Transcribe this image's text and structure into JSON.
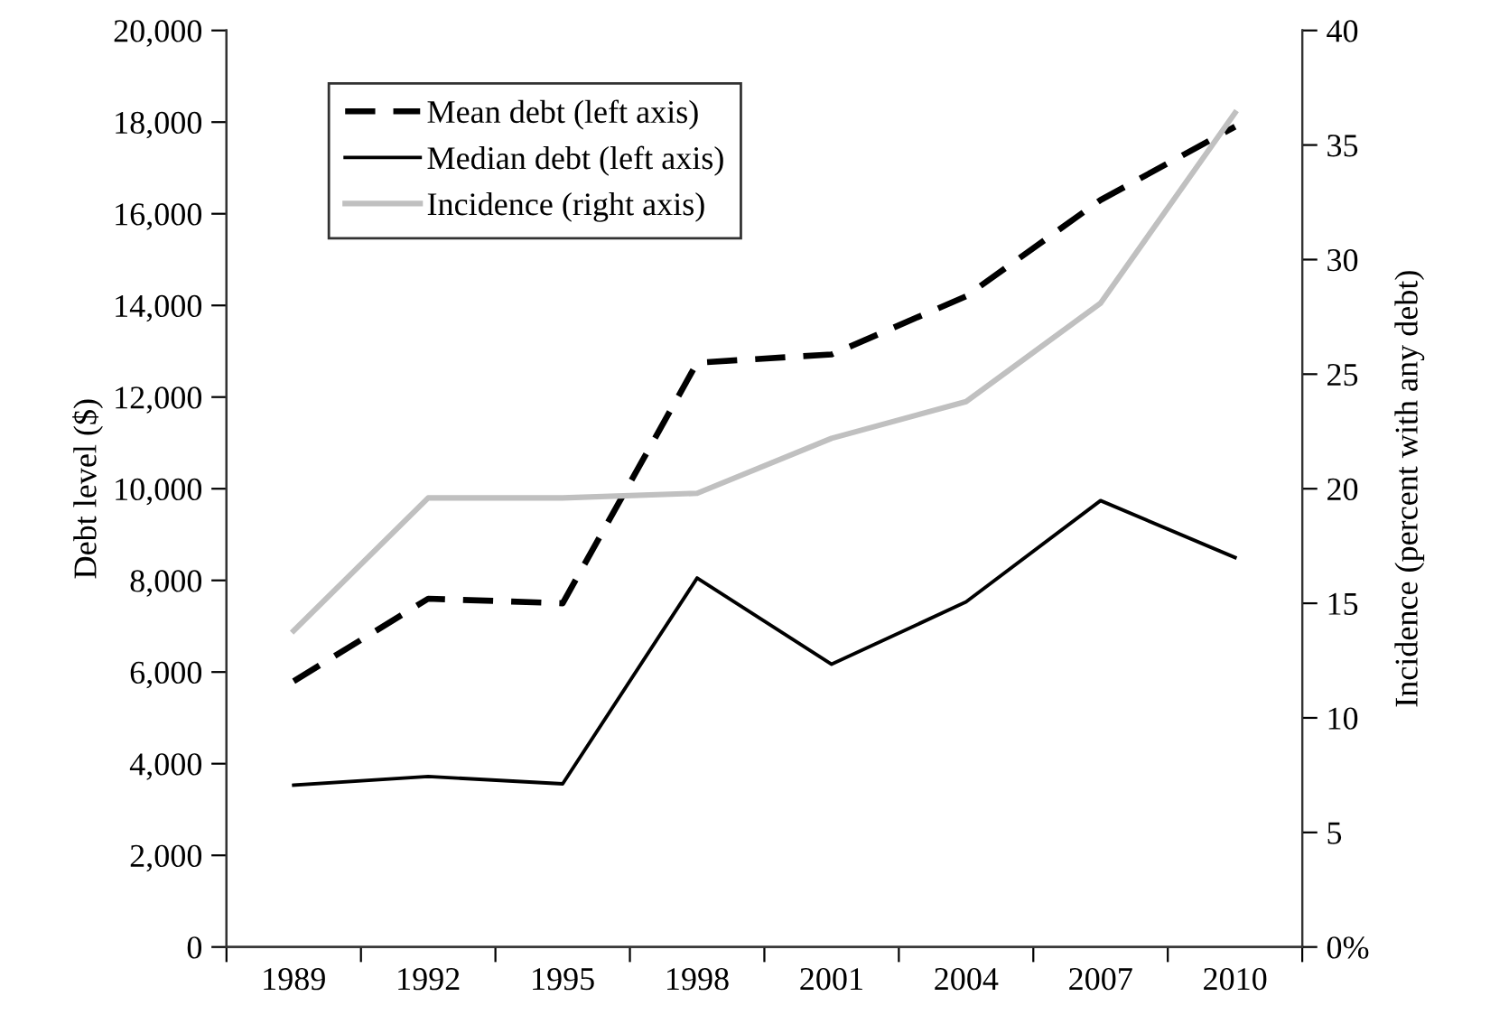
{
  "chart_data": {
    "type": "line",
    "ylabel": "Debt level ($)",
    "y2label": "Incidence (percent with any debt)",
    "categories": [
      "1989",
      "1992",
      "1995",
      "1998",
      "2001",
      "2004",
      "2007",
      "2010"
    ],
    "series": [
      {
        "name": "Mean debt (left axis)",
        "color": "#000000",
        "line_style": "dashed",
        "values": [
          5800,
          7600,
          7500,
          12750,
          12930,
          14200,
          16300,
          17900
        ]
      },
      {
        "name": "Median debt (left axis)",
        "color": "#000000",
        "line_style": "solid",
        "values": [
          3530,
          3720,
          3560,
          8050,
          6170,
          7530,
          9740,
          8500
        ]
      },
      {
        "name": "Incidence (right axis)",
        "color": "#c0c0c0",
        "line_style": "solid",
        "axis": "y2",
        "values": [
          13.8,
          19.6,
          19.6,
          19.8,
          22.2,
          23.8,
          28.1,
          36.4
        ]
      }
    ],
    "ylim": [
      0,
      20000
    ],
    "yticks": [
      {
        "value": 0,
        "label": "0"
      },
      {
        "value": 2000,
        "label": "2,000"
      },
      {
        "value": 4000,
        "label": "4,000"
      },
      {
        "value": 6000,
        "label": "6,000"
      },
      {
        "value": 8000,
        "label": "8,000"
      },
      {
        "value": 10000,
        "label": "10,000"
      },
      {
        "value": 12000,
        "label": "12,000"
      },
      {
        "value": 14000,
        "label": "14,000"
      },
      {
        "value": 16000,
        "label": "16,000"
      },
      {
        "value": 18000,
        "label": "18,000"
      },
      {
        "value": 20000,
        "label": "20,000"
      }
    ],
    "y2lim": [
      0,
      40
    ],
    "y2ticks": [
      {
        "value": 0,
        "label": "0%"
      },
      5,
      10,
      15,
      20,
      25,
      30,
      35,
      40
    ],
    "grid": false,
    "legend": "top left",
    "marker": "none"
  }
}
